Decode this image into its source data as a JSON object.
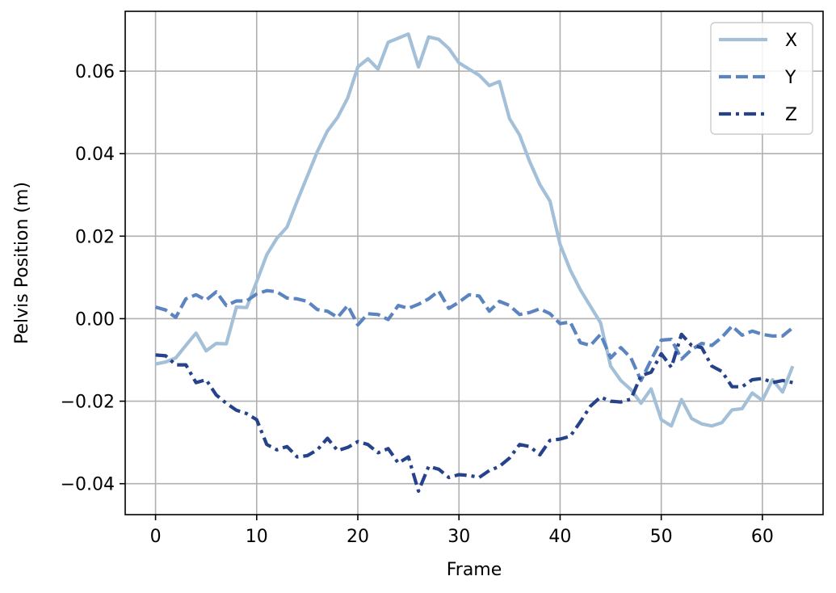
{
  "chart_data": {
    "type": "line",
    "title": "",
    "xlabel": "Frame",
    "ylabel": "Pelvis Position (m)",
    "xlim": [
      -3,
      66
    ],
    "ylim": [
      -0.0475,
      0.0745
    ],
    "xticks": [
      0,
      10,
      20,
      30,
      40,
      50,
      60
    ],
    "xtick_labels": [
      "0",
      "10",
      "20",
      "30",
      "40",
      "50",
      "60"
    ],
    "yticks": [
      -0.04,
      -0.02,
      0.0,
      0.02,
      0.04,
      0.06
    ],
    "ytick_labels": [
      "−0.04",
      "−0.02",
      "0.00",
      "0.02",
      "0.04",
      "0.06"
    ],
    "grid": true,
    "legend_position": "top-right",
    "x": [
      0,
      1,
      2,
      3,
      4,
      5,
      6,
      7,
      8,
      9,
      10,
      11,
      12,
      13,
      14,
      15,
      16,
      17,
      18,
      19,
      20,
      21,
      22,
      23,
      24,
      25,
      26,
      27,
      28,
      29,
      30,
      31,
      32,
      33,
      34,
      35,
      36,
      37,
      38,
      39,
      40,
      41,
      42,
      43,
      44,
      45,
      46,
      47,
      48,
      49,
      50,
      51,
      52,
      53,
      54,
      55,
      56,
      57,
      58,
      59,
      60,
      61,
      62,
      63
    ],
    "series": [
      {
        "name": "X",
        "color": "#a3c0d8",
        "dash": "solid",
        "values": [
          -0.011,
          -0.0105,
          -0.0095,
          -0.0065,
          -0.0035,
          -0.0078,
          -0.006,
          -0.0061,
          0.0028,
          0.0027,
          0.009,
          0.0155,
          0.0195,
          0.0222,
          0.0285,
          0.0345,
          0.0405,
          0.0455,
          0.0488,
          0.0535,
          0.061,
          0.063,
          0.0605,
          0.067,
          0.068,
          0.069,
          0.061,
          0.0683,
          0.0677,
          0.0655,
          0.062,
          0.0605,
          0.059,
          0.0565,
          0.0575,
          0.0485,
          0.0445,
          0.038,
          0.0325,
          0.0285,
          0.018,
          0.0118,
          0.007,
          0.003,
          -0.001,
          -0.0115,
          -0.015,
          -0.0172,
          -0.0205,
          -0.017,
          -0.0245,
          -0.026,
          -0.0196,
          -0.0242,
          -0.0255,
          -0.026,
          -0.0252,
          -0.0221,
          -0.0218,
          -0.018,
          -0.0198,
          -0.0148,
          -0.0178,
          -0.0115
        ]
      },
      {
        "name": "Y",
        "color": "#5b84c0",
        "dash": "dashed",
        "values": [
          0.0028,
          0.0021,
          0.0003,
          0.0048,
          0.0058,
          0.0045,
          0.0065,
          0.0032,
          0.0043,
          0.0043,
          0.006,
          0.0068,
          0.0065,
          0.005,
          0.0048,
          0.0042,
          0.0022,
          0.0018,
          0.0003,
          0.0032,
          -0.0015,
          0.0012,
          0.001,
          -0.0002,
          0.0032,
          0.0025,
          0.0035,
          0.0048,
          0.0067,
          0.0025,
          0.004,
          0.0058,
          0.0055,
          0.0018,
          0.0042,
          0.0032,
          0.001,
          0.0015,
          0.0024,
          0.0012,
          -0.0012,
          -0.0008,
          -0.0058,
          -0.0065,
          -0.0038,
          -0.0095,
          -0.007,
          -0.0095,
          -0.015,
          -0.01,
          -0.0052,
          -0.005,
          -0.0098,
          -0.0075,
          -0.006,
          -0.0065,
          -0.0045,
          -0.0018,
          -0.004,
          -0.003,
          -0.0038,
          -0.0042,
          -0.0042,
          -0.0022
        ]
      },
      {
        "name": "Z",
        "color": "#26428b",
        "dash": "dashdot",
        "values": [
          -0.0088,
          -0.009,
          -0.0112,
          -0.0112,
          -0.0155,
          -0.0148,
          -0.0185,
          -0.0205,
          -0.0222,
          -0.023,
          -0.0245,
          -0.0305,
          -0.0318,
          -0.031,
          -0.0335,
          -0.0332,
          -0.0318,
          -0.029,
          -0.032,
          -0.0312,
          -0.0298,
          -0.0305,
          -0.0325,
          -0.0315,
          -0.035,
          -0.0335,
          -0.0418,
          -0.0358,
          -0.0365,
          -0.0385,
          -0.0378,
          -0.038,
          -0.0385,
          -0.0368,
          -0.0358,
          -0.0338,
          -0.0305,
          -0.031,
          -0.033,
          -0.0295,
          -0.0292,
          -0.0285,
          -0.025,
          -0.0212,
          -0.019,
          -0.02,
          -0.0202,
          -0.0195,
          -0.0138,
          -0.013,
          -0.0085,
          -0.0118,
          -0.0038,
          -0.0065,
          -0.007,
          -0.0115,
          -0.0128,
          -0.0165,
          -0.0165,
          -0.0148,
          -0.0145,
          -0.0155,
          -0.015,
          -0.0155
        ]
      }
    ]
  }
}
